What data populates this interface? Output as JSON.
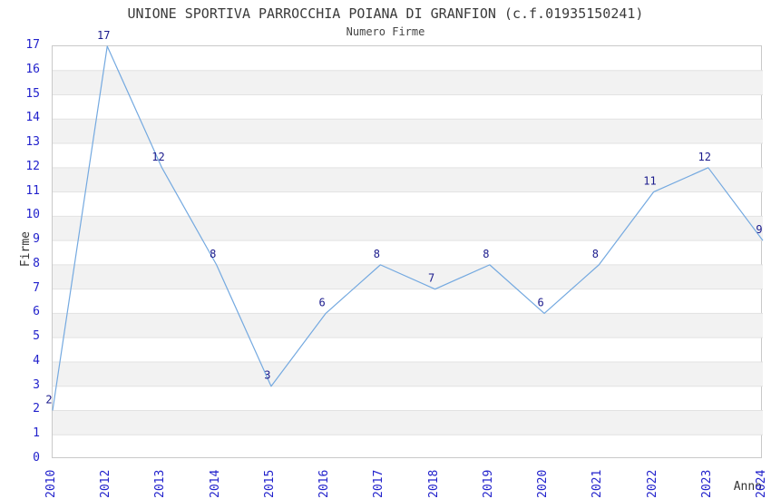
{
  "chart_data": {
    "type": "line",
    "title": "UNIONE SPORTIVA PARROCCHIA POIANA DI GRANFION (c.f.01935150241)",
    "subtitle": "Numero Firme",
    "xlabel": "Anno",
    "ylabel": "Firme",
    "categories": [
      "2010",
      "2012",
      "2013",
      "2014",
      "2015",
      "2016",
      "2017",
      "2018",
      "2019",
      "2020",
      "2021",
      "2022",
      "2023",
      "2024"
    ],
    "values": [
      2,
      17,
      12,
      8,
      3,
      6,
      8,
      7,
      8,
      6,
      8,
      11,
      12,
      9
    ],
    "ylim": [
      0,
      17
    ],
    "ytick_step": 1,
    "grid": true,
    "legend": "none",
    "band_style": "alternating horizontal bands, white and gray, 1 unit each",
    "colors": {
      "line": "#74a9e0",
      "data_label": "#1a1a8c",
      "tick_label": "#2222cc",
      "axis_title": "#333333",
      "title": "#3a3a3a",
      "band": "#f2f2f2",
      "gridline": "#e2e2e2",
      "border": "#c9c9c9",
      "background": "#ffffff"
    }
  }
}
